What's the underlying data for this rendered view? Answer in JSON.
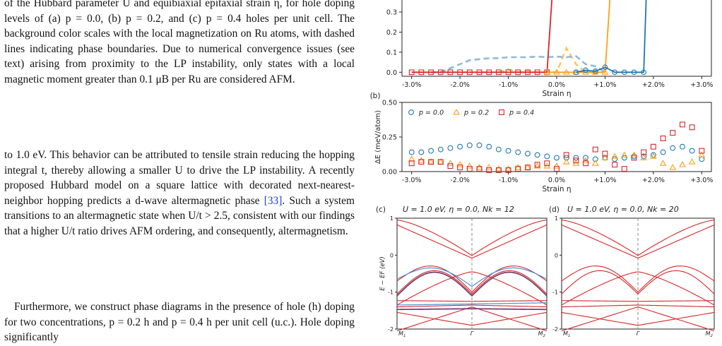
{
  "text": {
    "caption": "of the Hubbard parameter U and equibiaxial epitaxial strain η, for hole doping levels of (a) p = 0.0, (b) p = 0.2, and (c) p = 0.4 holes per unit cell. The background color scales with the local magnetization on Ru atoms, with dashed lines indicating phase boundaries. Due to numerical convergence issues (see text) arising from proximity to the LP instability, only states with a local magnetic moment greater than 0.1 μB per Ru are considered AFM.",
    "para1_before_ref": "to 1.0 eV. This behavior can be attributed to tensile strain reducing the hopping integral t, thereby allowing a smaller U to drive the LP instability. A recently proposed Hubbard model on a square lattice with decorated next-nearest-neighbor hopping predicts a d-wave altermagnetic phase ",
    "para1_ref": "[33]",
    "para1_after_ref": ". Such a system transitions to an altermagnetic state when U/t > 2.5, consistent with our findings that a higher U/t ratio drives AFM ordering, and consequently, altermagnetism.",
    "para2": "Furthermore, we construct phase diagrams in the presence of hole (h) doping for two concentrations, p = 0.2 h and p = 0.4 h per unit cell (u.c.). Hole doping significantly"
  },
  "chart_data": [
    {
      "type": "line",
      "panel": "a",
      "title": "",
      "xlabel": "Strain η",
      "ylabel": "",
      "x": [
        "-3.0%",
        "-2.0%",
        "-1.0%",
        "0.0%",
        "+1.0%",
        "+2.0%",
        "+3.0%"
      ],
      "xlim": [
        -3.2,
        3.2
      ],
      "ylim": [
        -0.02,
        0.36
      ],
      "yticks": [
        "0.0",
        "0.1",
        "0.2",
        "0.3"
      ],
      "series": [
        {
          "color": "#d62728",
          "marker": "square",
          "x": [
            -3.0,
            -2.8,
            -2.6,
            -2.4,
            -2.2,
            -2.0,
            -1.8,
            -1.6,
            -1.4,
            -1.2,
            -1.0,
            -0.8,
            -0.6,
            -0.4,
            -0.2
          ],
          "values": [
            0,
            0,
            0,
            0,
            0,
            0,
            0,
            0,
            0,
            0,
            0,
            0,
            0,
            0,
            0
          ],
          "jump_to": [
            -0.1,
            0.36
          ]
        },
        {
          "color": "#ff9f1c",
          "marker": "triangle",
          "x": [
            -0.2,
            0.0,
            0.2,
            0.4,
            0.6,
            0.8,
            1.0
          ],
          "values": [
            0,
            0,
            0,
            0,
            0,
            0,
            0
          ],
          "jump_to": [
            1.1,
            0.36
          ]
        },
        {
          "color": "#1f77b4",
          "marker": "circle",
          "x": [
            0.4,
            0.6,
            0.8,
            1.0,
            1.2,
            1.4,
            1.6,
            1.8
          ],
          "values": [
            0,
            0.01,
            0.005,
            0.025,
            0,
            0,
            0,
            0
          ],
          "jump_to": [
            1.85,
            0.36
          ]
        }
      ],
      "dashed": [
        {
          "color": "#ffc857",
          "x": [
            -1.2,
            -1.0,
            -0.8,
            -0.6,
            -0.4,
            -0.2,
            0.0,
            0.2,
            0.4,
            0.6,
            0.8
          ],
          "values": [
            0.0,
            0.015,
            0.0,
            0.01,
            0.0,
            0.0,
            0.0,
            0.12,
            0.04,
            0.0,
            0.0
          ]
        },
        {
          "color": "#8fb8dd",
          "x": [
            -2.6,
            -2.4,
            -2.2,
            -2.0,
            -1.8,
            -1.6,
            -1.4,
            -1.2,
            -1.0,
            -0.8,
            -0.6,
            -0.4,
            -0.2,
            0.0,
            0.2,
            0.4,
            0.6,
            0.8,
            1.0
          ],
          "values": [
            0.0,
            0.0,
            0.02,
            0.04,
            0.06,
            0.065,
            0.07,
            0.07,
            0.075,
            0.075,
            0.075,
            0.078,
            0.075,
            0.078,
            0.075,
            0.08,
            0.04,
            0.03,
            0.0
          ]
        }
      ]
    },
    {
      "type": "scatter",
      "panel": "b",
      "xlabel": "Strain η",
      "ylabel": "ΔE (meV/atom)",
      "x": [
        "-3.0%",
        "-2.0%",
        "-1.0%",
        "0.0%",
        "+1.0%",
        "+2.0%",
        "+3.0%"
      ],
      "xlim": [
        -3.2,
        3.2
      ],
      "ylim": [
        0,
        0.5
      ],
      "yticks": [
        "0.00",
        "0.25",
        "0.50"
      ],
      "legend": "top",
      "series": [
        {
          "name": "p = 0.0",
          "color": "#1f77b4",
          "marker": "circle",
          "x": [
            -3.0,
            -2.8,
            -2.6,
            -2.4,
            -2.2,
            -2.0,
            -1.8,
            -1.6,
            -1.4,
            -1.2,
            -1.0,
            -0.8,
            -0.6,
            -0.4,
            -0.2,
            0.0,
            0.2,
            0.4,
            0.6,
            0.8,
            1.0,
            1.2,
            1.4,
            1.6,
            1.8,
            2.0,
            2.2,
            2.4,
            2.6,
            2.8,
            3.0
          ],
          "values": [
            0.14,
            0.14,
            0.15,
            0.16,
            0.17,
            0.18,
            0.19,
            0.19,
            0.18,
            0.16,
            0.15,
            0.14,
            0.13,
            0.12,
            0.11,
            0.1,
            0.1,
            0.1,
            0.1,
            0.09,
            0.1,
            0.09,
            0.1,
            0.11,
            0.11,
            0.12,
            0.14,
            0.17,
            0.18,
            0.15,
            0.09
          ]
        },
        {
          "name": "p = 0.2",
          "color": "#ff9f1c",
          "marker": "triangle",
          "x": [
            -3.0,
            -2.8,
            -2.6,
            -2.4,
            -2.2,
            -2.0,
            -1.8,
            -1.6,
            -1.4,
            -1.2,
            -1.0,
            -0.8,
            -0.6,
            -0.4,
            -0.2,
            0.0,
            0.2,
            0.4,
            0.6,
            0.8,
            1.0,
            1.2,
            1.4,
            1.6,
            1.8,
            2.0,
            2.2,
            2.4,
            2.6,
            2.8,
            3.0
          ],
          "values": [
            0.09,
            0.08,
            0.07,
            0.07,
            0.06,
            0.05,
            0.04,
            0.03,
            0.03,
            0.02,
            0.02,
            0.03,
            0.03,
            0.04,
            0.04,
            0.04,
            0.07,
            0.06,
            0.08,
            0.06,
            0.1,
            0.11,
            0.12,
            0.12,
            0.1,
            0.11,
            0.06,
            0.03,
            0.05,
            0.07,
            0.12
          ]
        },
        {
          "name": "p = 0.4",
          "color": "#d62728",
          "marker": "square",
          "x": [
            -3.0,
            -2.8,
            -2.6,
            -2.4,
            -2.2,
            -2.0,
            -1.8,
            -1.6,
            -1.4,
            -1.2,
            -1.0,
            -0.8,
            -0.6,
            -0.4,
            -0.2,
            0.0,
            0.2,
            0.4,
            0.6,
            0.8,
            1.0,
            1.2,
            1.4,
            1.6,
            1.8,
            2.0,
            2.2,
            2.4,
            2.6,
            2.8,
            3.0
          ],
          "values": [
            0.06,
            0.07,
            0.07,
            0.07,
            0.04,
            0.03,
            0.02,
            0.02,
            0.01,
            0.01,
            0.01,
            0.02,
            0.03,
            0.05,
            0.06,
            0.02,
            0.12,
            0.08,
            0.06,
            0.16,
            0.13,
            0.05,
            0.02,
            0.1,
            0.14,
            0.18,
            0.24,
            0.28,
            0.34,
            0.32,
            0.15
          ]
        }
      ]
    },
    {
      "type": "line",
      "panel": "c",
      "title": "U = 1.0 eV, η = 0.0, Nk = 12",
      "ylabel": "E − EF (eV)",
      "yticks": [
        "1",
        "0",
        "-1",
        "-2"
      ],
      "ylim": [
        -2,
        1
      ],
      "xticks": [
        "M1",
        "Γ",
        "M2"
      ],
      "series_colors": [
        "#d62728",
        "#4a90d9",
        "#7a3f6e"
      ]
    },
    {
      "type": "line",
      "panel": "d",
      "title": "U = 1.0 eV, η = 0.0, Nk = 20",
      "yticks": [
        "1",
        "0",
        "-1",
        "-2"
      ],
      "ylim": [
        -2,
        1
      ],
      "xticks": [
        "M1",
        "Γ",
        "M2"
      ],
      "series_colors": [
        "#d62728"
      ]
    }
  ]
}
